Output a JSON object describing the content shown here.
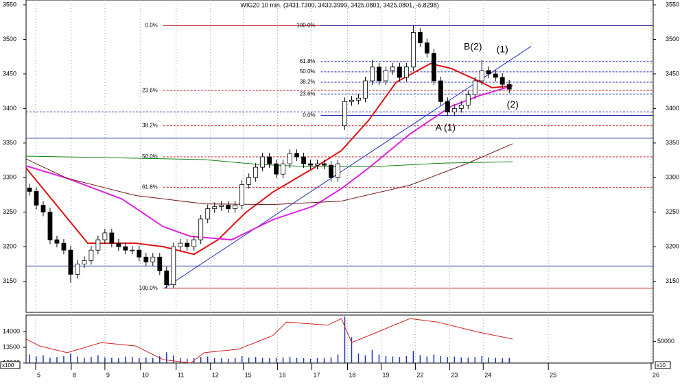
{
  "chart_data": {
    "type": "candlestick",
    "title": "WIG20 10 min. (3431.7300, 3433.3999, 3425.0801, 3425.0801, -6.8298)",
    "xlim": [
      0,
      183
    ],
    "ylim": [
      3105,
      3557
    ],
    "yticks": [
      3150,
      3200,
      3250,
      3300,
      3350,
      3400,
      3450,
      3500,
      3550
    ],
    "xticks": [
      {
        "value": 2.8,
        "label": "5"
      },
      {
        "value": 13.2,
        "label": "8"
      },
      {
        "value": 23,
        "label": "9"
      },
      {
        "value": 33.4,
        "label": "10"
      },
      {
        "value": 43.8,
        "label": "11"
      },
      {
        "value": 53.8,
        "label": "12"
      },
      {
        "value": 63.4,
        "label": "15"
      },
      {
        "value": 73.4,
        "label": "16"
      },
      {
        "value": 83.4,
        "label": "17"
      },
      {
        "value": 93.8,
        "label": "18"
      },
      {
        "value": 103.6,
        "label": "19"
      },
      {
        "value": 113.6,
        "label": "22"
      },
      {
        "value": 123.6,
        "label": "23"
      },
      {
        "value": 133.4,
        "label": "24"
      },
      {
        "value": 152.4,
        "label": "25"
      },
      {
        "value": 182.4,
        "label": "26"
      }
    ],
    "x": [
      1,
      3,
      5,
      7,
      9,
      11,
      13,
      15,
      17,
      19,
      21,
      23,
      25,
      27,
      29,
      31,
      33,
      35,
      37,
      39,
      41,
      43,
      45,
      47,
      49,
      51,
      53,
      55,
      57,
      59,
      61,
      63,
      65,
      67,
      69,
      71,
      73,
      75,
      77,
      79,
      81,
      83,
      85,
      87,
      89,
      91,
      93,
      95,
      97,
      99,
      101,
      103,
      105,
      107,
      109,
      111,
      113,
      115,
      117,
      119,
      121,
      123,
      125,
      127,
      129,
      131,
      133,
      135,
      137,
      139,
      141
    ],
    "open": [
      3285,
      3280,
      3260,
      3250,
      3210,
      3205,
      3195,
      3160,
      3175,
      3180,
      3195,
      3210,
      3220,
      3205,
      3200,
      3195,
      3195,
      3185,
      3178,
      3185,
      3165,
      3145,
      3200,
      3205,
      3200,
      3210,
      3240,
      3255,
      3258,
      3260,
      3255,
      3260,
      3290,
      3300,
      3315,
      3330,
      3320,
      3305,
      3320,
      3335,
      3330,
      3320,
      3318,
      3320,
      3318,
      3300,
      3375,
      3410,
      3412,
      3415,
      3440,
      3460,
      3440,
      3455,
      3460,
      3445,
      3460,
      3510,
      3495,
      3480,
      3440,
      3410,
      3395,
      3400,
      3405,
      3420,
      3440,
      3455,
      3450,
      3445,
      3435
    ],
    "high": [
      3291,
      3286,
      3266,
      3256,
      3216,
      3211,
      3201,
      3181,
      3186,
      3201,
      3216,
      3226,
      3226,
      3211,
      3206,
      3201,
      3201,
      3191,
      3191,
      3191,
      3171,
      3206,
      3211,
      3211,
      3216,
      3246,
      3261,
      3264,
      3266,
      3266,
      3266,
      3296,
      3306,
      3321,
      3336,
      3336,
      3326,
      3326,
      3341,
      3341,
      3336,
      3326,
      3326,
      3326,
      3324,
      3326,
      3416,
      3418,
      3421,
      3446,
      3470,
      3466,
      3461,
      3466,
      3466,
      3466,
      3520,
      3516,
      3501,
      3486,
      3446,
      3416,
      3406,
      3411,
      3426,
      3446,
      3470,
      3461,
      3456,
      3451,
      3441
    ],
    "low": [
      3274,
      3254,
      3244,
      3204,
      3199,
      3189,
      3148,
      3154,
      3169,
      3174,
      3189,
      3204,
      3199,
      3194,
      3189,
      3189,
      3179,
      3172,
      3172,
      3159,
      3140,
      3140,
      3194,
      3194,
      3194,
      3204,
      3234,
      3249,
      3252,
      3249,
      3249,
      3254,
      3284,
      3294,
      3309,
      3314,
      3299,
      3299,
      3314,
      3324,
      3314,
      3312,
      3312,
      3312,
      3294,
      3294,
      3369,
      3404,
      3406,
      3409,
      3434,
      3434,
      3434,
      3449,
      3439,
      3439,
      3454,
      3489,
      3474,
      3434,
      3404,
      3389,
      3389,
      3394,
      3399,
      3414,
      3434,
      3444,
      3439,
      3429,
      3422
    ],
    "close": [
      3280,
      3260,
      3250,
      3210,
      3205,
      3195,
      3160,
      3175,
      3180,
      3195,
      3210,
      3220,
      3205,
      3200,
      3195,
      3195,
      3185,
      3178,
      3185,
      3165,
      3145,
      3200,
      3205,
      3200,
      3210,
      3240,
      3255,
      3258,
      3260,
      3255,
      3260,
      3290,
      3300,
      3315,
      3330,
      3320,
      3305,
      3320,
      3335,
      3330,
      3320,
      3318,
      3320,
      3318,
      3300,
      3320,
      3410,
      3412,
      3415,
      3440,
      3460,
      3440,
      3455,
      3460,
      3445,
      3460,
      3510,
      3495,
      3480,
      3440,
      3410,
      3395,
      3400,
      3405,
      3420,
      3440,
      3455,
      3450,
      3445,
      3435,
      3428
    ],
    "lines": [
      {
        "color": "#e01010",
        "width": 2,
        "x": [
          0,
          18,
          32,
          40,
          49,
          56,
          64,
          72,
          84,
          92,
          100,
          108,
          118,
          124,
          132,
          136,
          142
        ],
        "values": [
          3314,
          3205,
          3205,
          3200,
          3189,
          3210,
          3249,
          3279,
          3314,
          3339,
          3383,
          3438,
          3465,
          3458,
          3440,
          3430,
          3433
        ]
      },
      {
        "color": "#e020e0",
        "width": 2,
        "x": [
          0,
          12,
          28,
          40,
          48,
          60,
          72,
          84,
          92,
          100,
          112,
          124,
          132,
          142
        ],
        "values": [
          3317,
          3299,
          3269,
          3229,
          3215,
          3210,
          3239,
          3259,
          3284,
          3314,
          3363,
          3403,
          3418,
          3433
        ]
      },
      {
        "color": "#701818",
        "width": 1,
        "x": [
          0,
          12,
          32,
          52,
          72,
          92,
          112,
          128,
          142
        ],
        "values": [
          3327,
          3299,
          3274,
          3262,
          3261,
          3266,
          3289,
          3319,
          3349
        ]
      },
      {
        "color": "#108010",
        "width": 1,
        "x": [
          0,
          22,
          52,
          68,
          82,
          102,
          122,
          142
        ],
        "values": [
          3331,
          3329,
          3326,
          3319,
          3316,
          3316,
          3321,
          3323
        ]
      }
    ],
    "trendline": {
      "color": "#2030c0",
      "x": [
        40.4,
        147.4
      ],
      "values": [
        3140,
        3490
      ]
    },
    "hlines": [
      {
        "value": 3395,
        "color": "#2030a0",
        "dash": true
      },
      {
        "value": 3357,
        "color": "#2030a0",
        "dash": false
      },
      {
        "value": 3172,
        "color": "#2030a0",
        "dash": false
      }
    ],
    "fib_red": {
      "color": "#c02020",
      "from": 40,
      "levels": [
        {
          "label": "0.0%",
          "value": 3520
        },
        {
          "label": "23.6%",
          "value": 3426
        },
        {
          "label": "38.2%",
          "value": 3375
        },
        {
          "label": "50.0%",
          "value": 3330
        },
        {
          "label": "61.8%",
          "value": 3286
        },
        {
          "label": "100.0%",
          "value": 3140
        }
      ]
    },
    "fib_blue": {
      "color": "#2030b0",
      "from": 86,
      "levels": [
        {
          "label": "0.0%",
          "value": 3390
        },
        {
          "label": "23.6%",
          "value": 3421
        },
        {
          "label": "38.2%",
          "value": 3438
        },
        {
          "label": "50.0%",
          "value": 3453
        },
        {
          "label": "61.8%",
          "value": 3468
        },
        {
          "label": "100.0%",
          "value": 3520
        }
      ]
    },
    "annotations": [
      {
        "text": "B(2)",
        "color": "#2030c0",
        "x": 130.4,
        "y": 3489
      },
      {
        "text": "(1)",
        "color": "#e01010",
        "x": 139,
        "y": 3485
      },
      {
        "text": "(2)",
        "color": "#e01010",
        "x": 142,
        "y": 3405
      },
      {
        "text": "A (1)",
        "color": "#2030c0",
        "x": 122.4,
        "y": 3372
      }
    ],
    "volume": [
      20000,
      15000,
      18000,
      12000,
      14000,
      16000,
      22000,
      15000,
      12000,
      14000,
      18000,
      13000,
      12000,
      11000,
      15000,
      14000,
      12000,
      13000,
      12000,
      16000,
      25000,
      18000,
      12000,
      10000,
      11000,
      14000,
      15000,
      12000,
      11000,
      10000,
      12000,
      16000,
      13000,
      14000,
      12000,
      11000,
      12000,
      13000,
      14000,
      12000,
      11000,
      10000,
      12000,
      11000,
      13000,
      20000,
      108000,
      60000,
      22000,
      18000,
      30000,
      20000,
      16000,
      15000,
      14000,
      16000,
      28000,
      18000,
      15000,
      20000,
      16000,
      14000,
      15000,
      13000,
      12000,
      14000,
      16000,
      13000,
      12000,
      11000,
      12000
    ],
    "volume_color": "#2030c0",
    "volume_y2lim": [
      0,
      110000
    ],
    "volume_y2ticks": [
      50000
    ],
    "volume_y2_unit": "x10",
    "lower_line": {
      "color": "#d02020",
      "x": [
        0,
        4,
        12,
        22,
        32,
        40,
        48,
        52,
        62,
        72,
        76,
        88,
        92,
        95,
        100,
        112,
        120,
        132,
        142
      ],
      "values": [
        13760,
        13540,
        13330,
        13650,
        13540,
        13110,
        13000,
        13330,
        13440,
        13870,
        14300,
        14200,
        14410,
        13650,
        13870,
        14410,
        14300,
        13980,
        13760
      ]
    },
    "lower_ylim": [
      13000,
      14500
    ],
    "lower_yticks": [
      13000,
      13500,
      14000
    ],
    "lower_y_unit": "x100"
  }
}
